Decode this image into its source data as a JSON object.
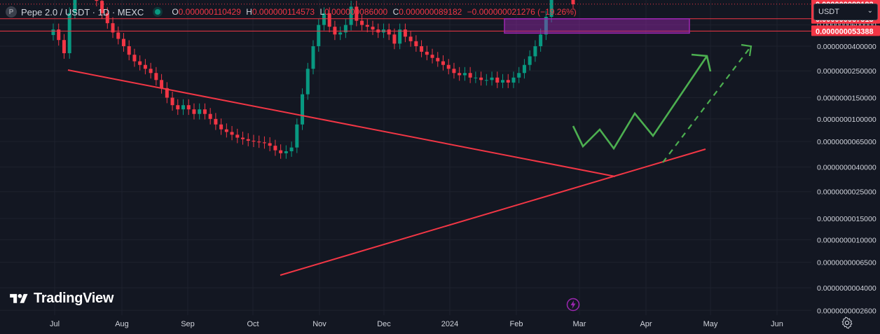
{
  "header": {
    "symbol_logo": "P",
    "title": "Pepe 2.0 / USDT · 1D · MEXC",
    "ohlc": {
      "o_label": "O",
      "o": "0.000000110429",
      "h_label": "H",
      "h": "0.000000114573",
      "l_label": "L",
      "l": "0.000000086000",
      "c_label": "C",
      "c": "0.000000089182",
      "change": "−0.000000021276 (−19.26%)"
    },
    "currency_select": "USDT"
  },
  "watermark": "TradingView",
  "colors": {
    "background": "#131722",
    "grid": "#1e222d",
    "up": "#089981",
    "down": "#f23645",
    "trendline": "#f23645",
    "projection": "#4caf50",
    "zone": "#9c27b0",
    "axis_text": "#d1d4dc"
  },
  "icons": {
    "settings": "gear-icon",
    "alert": "lightning-icon",
    "currency": "chevron-down-icon"
  },
  "chart_data": {
    "type": "candlestick",
    "scale": "log",
    "price_ticks": [
      "0.0000000600000",
      "0.0000000400000",
      "0.0000000250000",
      "0.0000000150000",
      "0.0000000100000",
      "0.0000000065000",
      "0.0000000040000",
      "0.0000000025000",
      "0.0000000015000",
      "0.0000000010000",
      "0.0000000006500",
      "0.0000000004000",
      "0.0000000002600"
    ],
    "time_ticks": [
      "Jul",
      "Aug",
      "Sep",
      "Oct",
      "Nov",
      "Dec",
      "2024",
      "Feb",
      "Mar",
      "Apr",
      "May",
      "Jun"
    ],
    "price_labels": [
      {
        "value": "0.000000089182",
        "extra": "11:01:43",
        "color": "#f23645"
      },
      {
        "value": "0.000000067513",
        "color": "#f23645"
      },
      {
        "value": "0.000000053388",
        "color": "#f23645"
      }
    ],
    "series": [
      {
        "name": "closes",
        "values": [
          5.5e-08,
          4.5e-08,
          3.5e-08,
          7.5e-08,
          1.6e-07,
          2.5e-07,
          1.8e-07,
          1.3e-07,
          9.5e-08,
          7.5e-08,
          6.2e-08,
          5.2e-08,
          4.6e-08,
          4e-08,
          3.4e-08,
          3e-08,
          2.8e-08,
          2.6e-08,
          2.4e-08,
          2.1e-08,
          1.8e-08,
          1.5e-08,
          1.3e-08,
          1.2e-08,
          1.3e-08,
          1.2e-08,
          1.1e-08,
          1.2e-08,
          1.1e-08,
          1e-08,
          9e-09,
          8.2e-09,
          7.8e-09,
          7.4e-09,
          7e-09,
          6.8e-09,
          6.6e-09,
          6.5e-09,
          6.4e-09,
          6.3e-09,
          6e-09,
          5.5e-09,
          5.2e-09,
          5.4e-09,
          5.8e-09,
          9e-09,
          1.6e-08,
          2.6e-08,
          4e-08,
          6e-08,
          7.5e-08,
          5.8e-08,
          5e-08,
          5.2e-08,
          6e-08,
          8.5e-08,
          6.5e-08,
          6e-08,
          5.8e-08,
          5.5e-08,
          5.2e-08,
          5.5e-08,
          5e-08,
          4.2e-08,
          5.5e-08,
          4.8e-08,
          4.4e-08,
          4e-08,
          3.6e-08,
          3.4e-08,
          3.2e-08,
          3e-08,
          2.8e-08,
          2.6e-08,
          2.4e-08,
          2.3e-08,
          2.4e-08,
          2.2e-08,
          2.2e-08,
          2.1e-08,
          2.1e-08,
          2.2e-08,
          2e-08,
          2.1e-08,
          2e-08,
          2.2e-08,
          2.4e-08,
          2.8e-08,
          3.3e-08,
          4e-08,
          5e-08,
          7e-08,
          1.1e-07,
          1.6e-07,
          1.5e-07,
          1.1e-07,
          8.9e-08
        ]
      }
    ],
    "annotations": {
      "zone": {
        "top": "0.000000067513",
        "bottom": "0.000000053388"
      }
    }
  }
}
